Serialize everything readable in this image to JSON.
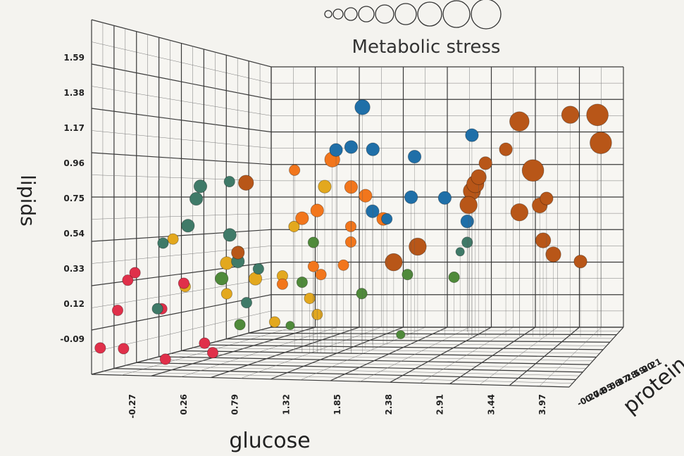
{
  "chart_data": {
    "type": "scatter",
    "subtype": "3d-bubble",
    "title": "Metabolic stress",
    "xlabel": "glucose",
    "ylabel": "lipids",
    "zlabel": "protein",
    "x_ticks": [
      "-0.27",
      "0.26",
      "0.79",
      "1.32",
      "1.85",
      "2.38",
      "2.91",
      "3.44",
      "3.97"
    ],
    "y_ticks": [
      "-0.09",
      "0.12",
      "0.33",
      "0.54",
      "0.75",
      "0.96",
      "1.17",
      "1.38",
      "1.59"
    ],
    "z_ticks": [
      "-0.27",
      "0.04",
      "0.35",
      "0.66",
      "0.97",
      "1.28",
      "1.59",
      "1.90",
      "2.21"
    ],
    "size_legend_count": 9,
    "grid": true,
    "colors": {
      "red": "#e0304a",
      "yellow": "#e3a81e",
      "green": "#4f8a3a",
      "teal": "#3f7a68",
      "orange": "#f2761c",
      "blue": "#1f6fa8",
      "brown": "#b85618"
    },
    "points": [
      {
        "x": -0.3,
        "y": 0.05,
        "d": 0.0,
        "s": 3,
        "c": "red"
      },
      {
        "x": -0.2,
        "y": 0.03,
        "d": 0.1,
        "s": 3,
        "c": "red"
      },
      {
        "x": -0.1,
        "y": 0.25,
        "d": 0.0,
        "s": 3,
        "c": "red"
      },
      {
        "x": -0.15,
        "y": 0.4,
        "d": 0.1,
        "s": 3,
        "c": "red"
      },
      {
        "x": 0.1,
        "y": 0.45,
        "d": 0.0,
        "s": 3,
        "c": "red"
      },
      {
        "x": 0.25,
        "y": 0.25,
        "d": 0.1,
        "s": 3,
        "c": "red"
      },
      {
        "x": 0.45,
        "y": 0.0,
        "d": 0.0,
        "s": 3,
        "c": "red"
      },
      {
        "x": 0.6,
        "y": 0.05,
        "d": 0.2,
        "s": 3,
        "c": "red"
      },
      {
        "x": 0.85,
        "y": 0.02,
        "d": 0.1,
        "s": 3,
        "c": "red"
      },
      {
        "x": 0.35,
        "y": 0.38,
        "d": 0.2,
        "s": 3,
        "c": "red"
      },
      {
        "x": 0.05,
        "y": 0.62,
        "d": 0.3,
        "s": 3,
        "c": "yellow"
      },
      {
        "x": 0.2,
        "y": 0.35,
        "d": 0.3,
        "s": 3,
        "c": "yellow"
      },
      {
        "x": 0.55,
        "y": 0.3,
        "d": 0.4,
        "s": 3,
        "c": "yellow"
      },
      {
        "x": 0.7,
        "y": 0.55,
        "d": 0.4,
        "s": 3,
        "c": "yellow"
      },
      {
        "x": 0.75,
        "y": 0.38,
        "d": 0.5,
        "s": 4,
        "c": "yellow"
      },
      {
        "x": 0.55,
        "y": 0.48,
        "d": 0.4,
        "s": 4,
        "c": "yellow"
      },
      {
        "x": 1.1,
        "y": 0.4,
        "d": 0.5,
        "s": 3,
        "c": "yellow"
      },
      {
        "x": 1.25,
        "y": 0.7,
        "d": 0.5,
        "s": 3,
        "c": "yellow"
      },
      {
        "x": 1.3,
        "y": 0.25,
        "d": 0.6,
        "s": 3,
        "c": "yellow"
      },
      {
        "x": 1.0,
        "y": 0.12,
        "d": 0.5,
        "s": 3,
        "c": "yellow"
      },
      {
        "x": 1.5,
        "y": 0.95,
        "d": 0.6,
        "s": 4,
        "c": "yellow"
      },
      {
        "x": 1.4,
        "y": 0.15,
        "d": 0.6,
        "s": 3,
        "c": "yellow"
      },
      {
        "x": 0.55,
        "y": 0.1,
        "d": 0.5,
        "s": 3,
        "c": "green"
      },
      {
        "x": 0.65,
        "y": 0.4,
        "d": 0.3,
        "s": 4,
        "c": "green"
      },
      {
        "x": 1.2,
        "y": 0.35,
        "d": 0.6,
        "s": 3,
        "c": "green"
      },
      {
        "x": 1.35,
        "y": 0.6,
        "d": 0.6,
        "s": 3,
        "c": "green"
      },
      {
        "x": 1.7,
        "y": 0.25,
        "d": 0.8,
        "s": 3,
        "c": "green"
      },
      {
        "x": 2.05,
        "y": 0.35,
        "d": 1.0,
        "s": 3,
        "c": "green"
      },
      {
        "x": 2.1,
        "y": -0.05,
        "d": 0.9,
        "s": 2,
        "c": "green"
      },
      {
        "x": 2.6,
        "y": 0.3,
        "d": 1.1,
        "s": 3,
        "c": "green"
      },
      {
        "x": 1.2,
        "y": 0.1,
        "d": 0.5,
        "s": 2,
        "c": "green"
      },
      {
        "x": 0.1,
        "y": 0.6,
        "d": 0.2,
        "s": 3,
        "c": "teal"
      },
      {
        "x": 0.2,
        "y": 0.25,
        "d": 0.1,
        "s": 3,
        "c": "teal"
      },
      {
        "x": 0.4,
        "y": 0.7,
        "d": 0.2,
        "s": 4,
        "c": "teal"
      },
      {
        "x": 0.5,
        "y": 0.85,
        "d": 0.2,
        "s": 4,
        "c": "teal"
      },
      {
        "x": 0.55,
        "y": 0.92,
        "d": 0.2,
        "s": 4,
        "c": "teal"
      },
      {
        "x": 0.75,
        "y": 0.65,
        "d": 0.3,
        "s": 4,
        "c": "teal"
      },
      {
        "x": 0.85,
        "y": 0.5,
        "d": 0.3,
        "s": 4,
        "c": "teal"
      },
      {
        "x": 0.95,
        "y": 0.45,
        "d": 0.4,
        "s": 3,
        "c": "teal"
      },
      {
        "x": 0.8,
        "y": 0.25,
        "d": 0.4,
        "s": 3,
        "c": "teal"
      },
      {
        "x": 0.9,
        "y": 0.95,
        "d": 0.2,
        "s": 3,
        "c": "teal"
      },
      {
        "x": 2.8,
        "y": 0.55,
        "d": 1.1,
        "s": 3,
        "c": "teal"
      },
      {
        "x": 2.55,
        "y": 0.45,
        "d": 1.2,
        "s": 2,
        "c": "teal"
      },
      {
        "x": 1.1,
        "y": 1.05,
        "d": 0.6,
        "s": 3,
        "c": "orange"
      },
      {
        "x": 1.2,
        "y": 0.75,
        "d": 0.6,
        "s": 4,
        "c": "orange"
      },
      {
        "x": 1.4,
        "y": 0.8,
        "d": 0.6,
        "s": 4,
        "c": "orange"
      },
      {
        "x": 1.6,
        "y": 1.12,
        "d": 0.6,
        "s": 5,
        "c": "orange"
      },
      {
        "x": 1.7,
        "y": 0.7,
        "d": 0.7,
        "s": 3,
        "c": "orange"
      },
      {
        "x": 1.45,
        "y": 0.4,
        "d": 0.6,
        "s": 3,
        "c": "orange"
      },
      {
        "x": 1.35,
        "y": 0.45,
        "d": 0.6,
        "s": 3,
        "c": "orange"
      },
      {
        "x": 1.9,
        "y": 0.9,
        "d": 0.7,
        "s": 4,
        "c": "orange"
      },
      {
        "x": 1.85,
        "y": 0.95,
        "d": 0.6,
        "s": 4,
        "c": "orange"
      },
      {
        "x": 2.0,
        "y": 0.75,
        "d": 0.8,
        "s": 4,
        "c": "orange"
      },
      {
        "x": 1.6,
        "y": 0.45,
        "d": 0.7,
        "s": 3,
        "c": "orange"
      },
      {
        "x": 1.7,
        "y": 0.6,
        "d": 0.7,
        "s": 3,
        "c": "orange"
      },
      {
        "x": 1.1,
        "y": 0.35,
        "d": 0.5,
        "s": 3,
        "c": "orange"
      },
      {
        "x": 1.65,
        "y": 1.18,
        "d": 0.6,
        "s": 4,
        "c": "blue"
      },
      {
        "x": 2.0,
        "y": 1.45,
        "d": 0.6,
        "s": 5,
        "c": "blue"
      },
      {
        "x": 2.0,
        "y": 1.2,
        "d": 0.7,
        "s": 4,
        "c": "blue"
      },
      {
        "x": 2.3,
        "y": 1.18,
        "d": 0.9,
        "s": 4,
        "c": "blue"
      },
      {
        "x": 2.25,
        "y": 0.9,
        "d": 0.9,
        "s": 4,
        "c": "blue"
      },
      {
        "x": 1.85,
        "y": 0.8,
        "d": 0.8,
        "s": 4,
        "c": "blue"
      },
      {
        "x": 2.05,
        "y": 0.75,
        "d": 0.8,
        "s": 3,
        "c": "blue"
      },
      {
        "x": 2.6,
        "y": 0.9,
        "d": 1.0,
        "s": 4,
        "c": "blue"
      },
      {
        "x": 2.8,
        "y": 0.7,
        "d": 1.1,
        "s": 4,
        "c": "blue"
      },
      {
        "x": 3.0,
        "y": 1.35,
        "d": 1.0,
        "s": 4,
        "c": "blue"
      },
      {
        "x": 1.85,
        "y": 1.2,
        "d": 0.6,
        "s": 4,
        "c": "blue"
      },
      {
        "x": 2.0,
        "y": 0.45,
        "d": 0.9,
        "s": 6,
        "c": "brown"
      },
      {
        "x": 2.2,
        "y": 0.55,
        "d": 1.0,
        "s": 6,
        "c": "brown"
      },
      {
        "x": 0.95,
        "y": 0.95,
        "d": 0.3,
        "s": 5,
        "c": "brown"
      },
      {
        "x": 0.85,
        "y": 0.55,
        "d": 0.3,
        "s": 4,
        "c": "brown"
      },
      {
        "x": 3.0,
        "y": 0.95,
        "d": 1.0,
        "s": 6,
        "c": "brown"
      },
      {
        "x": 3.05,
        "y": 1.0,
        "d": 1.0,
        "s": 6,
        "c": "brown"
      },
      {
        "x": 3.1,
        "y": 1.05,
        "d": 1.0,
        "s": 5,
        "c": "brown"
      },
      {
        "x": 2.95,
        "y": 0.85,
        "d": 1.0,
        "s": 6,
        "c": "brown"
      },
      {
        "x": 3.2,
        "y": 1.15,
        "d": 1.0,
        "s": 4,
        "c": "brown"
      },
      {
        "x": 3.5,
        "y": 1.25,
        "d": 1.0,
        "s": 4,
        "c": "brown"
      },
      {
        "x": 3.7,
        "y": 1.45,
        "d": 1.0,
        "s": 7,
        "c": "brown"
      },
      {
        "x": 3.9,
        "y": 1.1,
        "d": 1.0,
        "s": 8,
        "c": "brown"
      },
      {
        "x": 4.0,
        "y": 0.85,
        "d": 1.0,
        "s": 5,
        "c": "brown"
      },
      {
        "x": 3.7,
        "y": 0.8,
        "d": 1.0,
        "s": 6,
        "c": "brown"
      },
      {
        "x": 4.05,
        "y": 0.6,
        "d": 1.0,
        "s": 5,
        "c": "brown"
      },
      {
        "x": 4.2,
        "y": 0.5,
        "d": 1.0,
        "s": 5,
        "c": "brown"
      },
      {
        "x": 4.45,
        "y": 1.5,
        "d": 1.0,
        "s": 6,
        "c": "brown"
      },
      {
        "x": 4.85,
        "y": 1.5,
        "d": 1.0,
        "s": 8,
        "c": "brown"
      },
      {
        "x": 4.9,
        "y": 1.3,
        "d": 1.0,
        "s": 8,
        "c": "brown"
      },
      {
        "x": 4.6,
        "y": 0.45,
        "d": 1.0,
        "s": 4,
        "c": "brown"
      },
      {
        "x": 4.1,
        "y": 0.9,
        "d": 1.0,
        "s": 4,
        "c": "brown"
      }
    ]
  }
}
